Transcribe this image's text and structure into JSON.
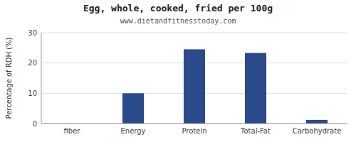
{
  "chart_data": {
    "type": "bar",
    "title": "Egg, whole, cooked, fried per 100g",
    "subtitle": "www.dietandfitnesstoday.com",
    "categories": [
      "fiber",
      "Energy",
      "Protein",
      "Total-Fat",
      "Carbohydrate"
    ],
    "values": [
      0,
      10.0,
      24.5,
      23.3,
      1.2
    ],
    "color": "#2b4a8b",
    "ylabel": "Percentage of RDH (%)",
    "ylim": [
      0,
      30
    ],
    "yticks": [
      0,
      10,
      20,
      30
    ],
    "grid": true
  }
}
